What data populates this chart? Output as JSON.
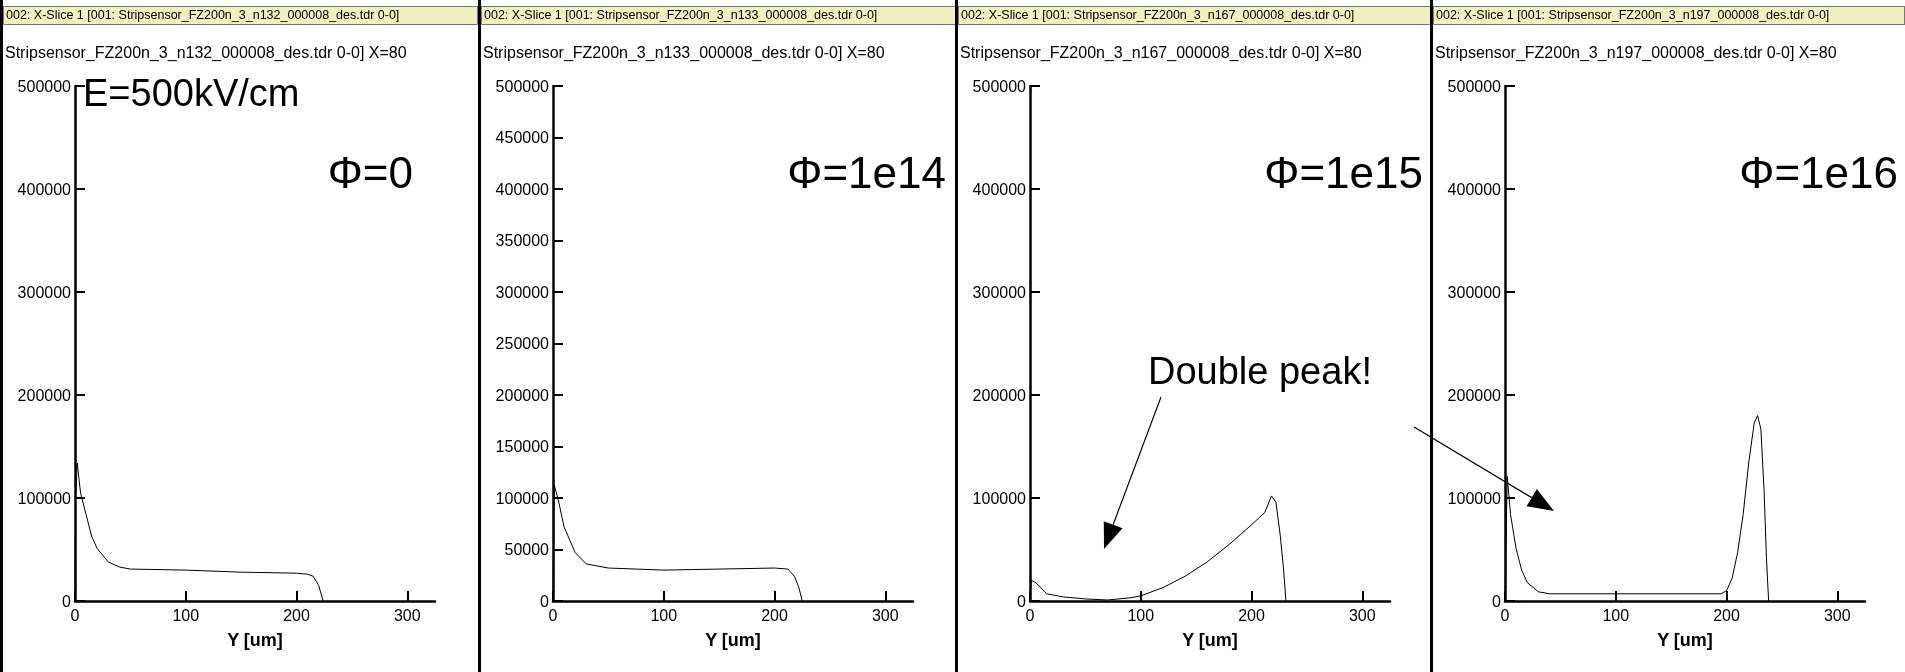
{
  "chart_data": [
    {
      "type": "line",
      "title": "002: X-Slice 1 [001: Stripsensor_FZ200n_3_n132_000008_des.tdr 0-0]",
      "subtitle": "Stripsensor_FZ200n_3_n132_000008_des.tdr 0-0] X=80",
      "xlabel": "Y [um]",
      "annotations": [
        "E=500kV/cm",
        "Φ=0"
      ],
      "x": [
        0,
        0.5,
        2,
        5,
        10,
        15,
        20,
        30,
        40,
        50,
        100,
        150,
        200,
        210,
        215,
        220,
        224
      ],
      "values": [
        0,
        100000,
        134000,
        105000,
        84000,
        63000,
        51000,
        38000,
        33000,
        31000,
        30000,
        28000,
        27000,
        26000,
        24000,
        15000,
        0
      ],
      "color": "#000000",
      "marker": "none",
      "line_style": "solid",
      "xlim": [
        0,
        325
      ],
      "xticks": [
        0,
        100,
        200,
        300
      ],
      "ylim": [
        0,
        500000
      ],
      "yticks": [
        0,
        100000,
        200000,
        300000,
        400000,
        500000
      ]
    },
    {
      "type": "line",
      "title": "002: X-Slice 1 [001: Stripsensor_FZ200n_3_n133_000008_des.tdr 0-0]",
      "subtitle": "Stripsensor_FZ200n_3_n133_000008_des.tdr 0-0] X=80",
      "xlabel": "Y [um]",
      "annotations": [
        "Φ=1e14"
      ],
      "x": [
        0,
        1,
        5,
        10,
        20,
        30,
        50,
        100,
        150,
        200,
        212,
        218,
        222,
        225
      ],
      "values": [
        0,
        113000,
        97000,
        72000,
        47000,
        36000,
        32000,
        30000,
        31000,
        32000,
        31000,
        24000,
        13000,
        0
      ],
      "color": "#000000",
      "marker": "none",
      "line_style": "solid",
      "xlim": [
        0,
        325
      ],
      "xticks": [
        0,
        100,
        200,
        300
      ],
      "ylim": [
        0,
        500000
      ],
      "yticks": [
        0,
        50000,
        100000,
        150000,
        200000,
        250000,
        300000,
        350000,
        400000,
        450000,
        500000
      ]
    },
    {
      "type": "line",
      "title": "002: X-Slice 1 [001: Stripsensor_FZ200n_3_n167_000008_des.tdr 0-0]",
      "subtitle": "Stripsensor_FZ200n_3_n167_000008_des.tdr 0-0] X=80",
      "xlabel": "Y [um]",
      "annotations": [
        "Φ=1e15",
        "Double peak!"
      ],
      "x": [
        0,
        1,
        5,
        15,
        30,
        50,
        70,
        90,
        100,
        120,
        140,
        160,
        180,
        200,
        212,
        218,
        222,
        226,
        229,
        231
      ],
      "values": [
        0,
        20000,
        18000,
        7000,
        4000,
        2000,
        1000,
        3000,
        5000,
        13000,
        24000,
        38000,
        55000,
        74000,
        86000,
        102000,
        96000,
        63000,
        30000,
        0
      ],
      "color": "#000000",
      "marker": "none",
      "line_style": "solid",
      "xlim": [
        0,
        325
      ],
      "xticks": [
        0,
        100,
        200,
        300
      ],
      "ylim": [
        0,
        500000
      ],
      "yticks": [
        0,
        100000,
        200000,
        300000,
        400000,
        500000
      ]
    },
    {
      "type": "line",
      "title": "002: X-Slice 1 [001: Stripsensor_FZ200n_3_n197_000008_des.tdr 0-0]",
      "subtitle": "Stripsensor_FZ200n_3_n197_000008_des.tdr 0-0] X=80",
      "xlabel": "Y [um]",
      "annotations": [
        "Φ=1e16"
      ],
      "x": [
        0,
        2,
        5,
        10,
        15,
        20,
        30,
        40,
        100,
        195,
        200,
        205,
        210,
        215,
        220,
        225,
        228,
        231,
        234,
        236,
        238
      ],
      "values": [
        0,
        121000,
        84000,
        51000,
        30000,
        18000,
        9000,
        7000,
        7000,
        7000,
        10000,
        22000,
        47000,
        84000,
        134000,
        173000,
        180000,
        167000,
        105000,
        42000,
        0
      ],
      "color": "#000000",
      "marker": "none",
      "line_style": "solid",
      "xlim": [
        0,
        325
      ],
      "xticks": [
        0,
        100,
        200,
        300
      ],
      "ylim": [
        0,
        500000
      ],
      "yticks": [
        0,
        100000,
        200000,
        300000,
        400000,
        500000
      ]
    }
  ]
}
